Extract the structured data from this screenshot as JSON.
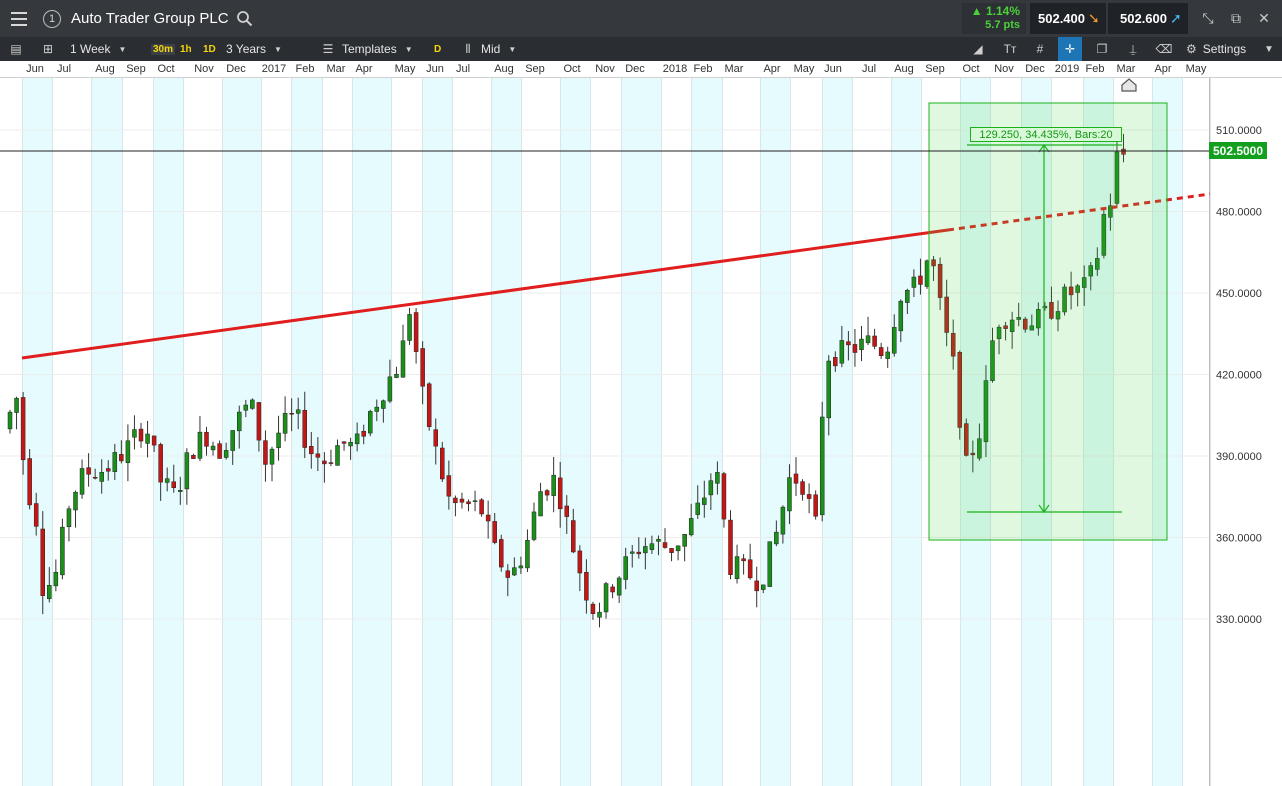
{
  "header": {
    "instrument": "Auto Trader Group PLC",
    "info_glyph": "1",
    "change_pct": "▲ 1.14%",
    "change_pts": "5.7 pts",
    "sell_price": "502.400",
    "buy_price": "502.600",
    "icons": [
      "menu-icon",
      "info-icon",
      "search-icon",
      "sell-arrow-icon",
      "buy-arrow-icon",
      "shrink-icon",
      "external-link-icon",
      "close-icon"
    ]
  },
  "toolbar": {
    "interval": "1 Week",
    "quick_intervals": [
      "30m",
      "1h",
      "1D"
    ],
    "range": "3 Years",
    "templates": "Templates",
    "d_tag": "D",
    "price_type": "Mid",
    "settings": "Settings"
  },
  "chart": {
    "months": [
      "Jun",
      "Jul",
      "Aug",
      "Sep",
      "Oct",
      "Nov",
      "Dec",
      "2017",
      "Feb",
      "Mar",
      "Apr",
      "May",
      "Jun",
      "Jul",
      "Aug",
      "Sep",
      "Oct",
      "Nov",
      "Dec",
      "2018",
      "Feb",
      "Mar",
      "Apr",
      "May",
      "Jun",
      "Jul",
      "Aug",
      "Sep",
      "Oct",
      "Nov",
      "Dec",
      "2019",
      "Feb",
      "Mar",
      "Apr",
      "May"
    ],
    "price_ticks": [
      "510.0000",
      "480.0000",
      "450.0000",
      "420.0000",
      "390.0000",
      "360.0000",
      "330.0000"
    ],
    "current_price": "502.5000",
    "measure_label": "129.250, 34.435%, Bars:20",
    "colors": {
      "up": "#1a8f1a",
      "down": "#c51616",
      "trendline": "#e01e1e",
      "band": "#e6fbfd",
      "measure": "#19b319"
    }
  }
}
